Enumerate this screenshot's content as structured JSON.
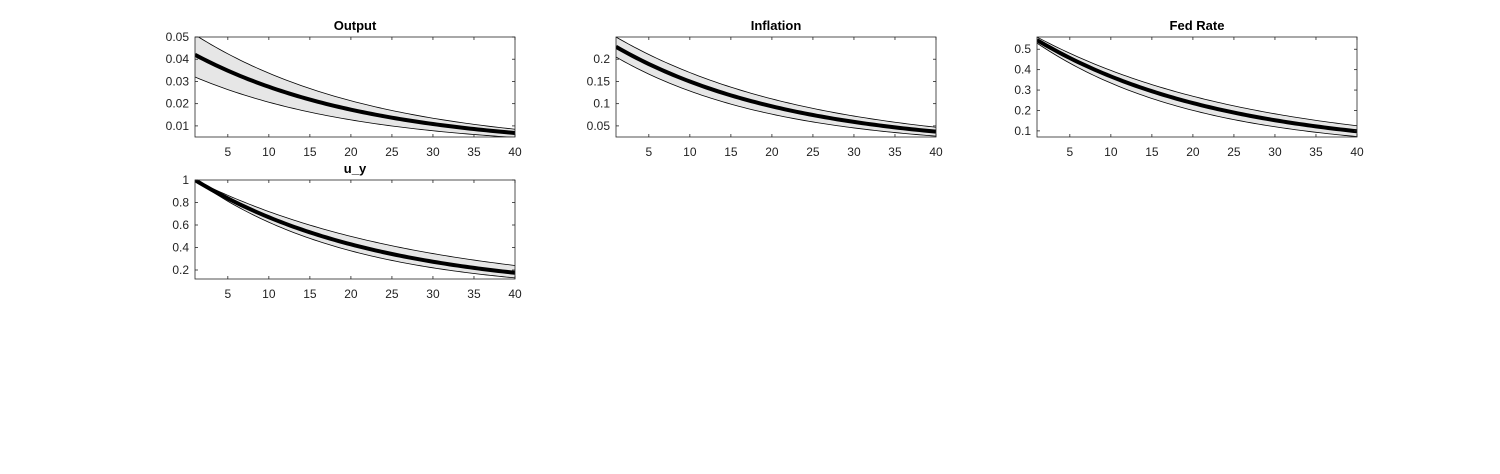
{
  "chart_data": [
    {
      "type": "line",
      "title": "Output",
      "x": [
        1,
        40
      ],
      "xlim": [
        1,
        40
      ],
      "xticks": [
        5,
        10,
        15,
        20,
        25,
        30,
        35,
        40
      ],
      "ylim": [
        0.005,
        0.05
      ],
      "yticks": [
        0.01,
        0.02,
        0.03,
        0.04,
        0.05
      ],
      "ytick_labels": [
        "0.01",
        "0.02",
        "0.03",
        "0.04",
        "0.05"
      ],
      "series": [
        {
          "role": "mean",
          "start": 0.042,
          "end": 0.0068,
          "color": "#000000"
        },
        {
          "role": "upper",
          "start": 0.051,
          "end": 0.0085,
          "color": "#000000"
        },
        {
          "role": "lower",
          "start": 0.032,
          "end": 0.0048,
          "color": "#000000"
        }
      ],
      "band_color": "#e6e6e6"
    },
    {
      "type": "line",
      "title": "Inflation",
      "x": [
        1,
        40
      ],
      "xlim": [
        1,
        40
      ],
      "xticks": [
        5,
        10,
        15,
        20,
        25,
        30,
        35,
        40
      ],
      "ylim": [
        0.025,
        0.25
      ],
      "yticks": [
        0.05,
        0.1,
        0.15,
        0.2
      ],
      "ytick_labels": [
        "0.05",
        "0.1",
        "0.15",
        "0.2"
      ],
      "series": [
        {
          "role": "mean",
          "start": 0.228,
          "end": 0.037,
          "color": "#000000"
        },
        {
          "role": "upper",
          "start": 0.25,
          "end": 0.047,
          "color": "#000000"
        },
        {
          "role": "lower",
          "start": 0.205,
          "end": 0.027,
          "color": "#000000"
        }
      ],
      "band_color": "#e6e6e6"
    },
    {
      "type": "line",
      "title": "Fed Rate",
      "x": [
        1,
        40
      ],
      "xlim": [
        1,
        40
      ],
      "xticks": [
        5,
        10,
        15,
        20,
        25,
        30,
        35,
        40
      ],
      "ylim": [
        0.07,
        0.56
      ],
      "yticks": [
        0.1,
        0.2,
        0.3,
        0.4,
        0.5
      ],
      "ytick_labels": [
        "0.1",
        "0.2",
        "0.3",
        "0.4",
        "0.5"
      ],
      "series": [
        {
          "role": "mean",
          "start": 0.545,
          "end": 0.098,
          "color": "#000000"
        },
        {
          "role": "upper",
          "start": 0.56,
          "end": 0.125,
          "color": "#000000"
        },
        {
          "role": "lower",
          "start": 0.53,
          "end": 0.072,
          "color": "#000000"
        }
      ],
      "band_color": "#e6e6e6"
    },
    {
      "type": "line",
      "title": "u_y",
      "x": [
        1,
        40
      ],
      "xlim": [
        1,
        40
      ],
      "xticks": [
        5,
        10,
        15,
        20,
        25,
        30,
        35,
        40
      ],
      "ylim": [
        0.12,
        1.0
      ],
      "yticks": [
        0.2,
        0.4,
        0.6,
        0.8,
        1.0
      ],
      "ytick_labels": [
        "0.2",
        "0.4",
        "0.6",
        "0.8",
        "1"
      ],
      "series": [
        {
          "role": "mean",
          "start": 1.0,
          "end": 0.175,
          "color": "#000000"
        },
        {
          "role": "upper",
          "start": 1.0,
          "end": 0.24,
          "color": "#000000"
        },
        {
          "role": "lower",
          "start": 1.0,
          "end": 0.13,
          "color": "#000000"
        }
      ],
      "band_color": "#e6e6e6"
    }
  ]
}
